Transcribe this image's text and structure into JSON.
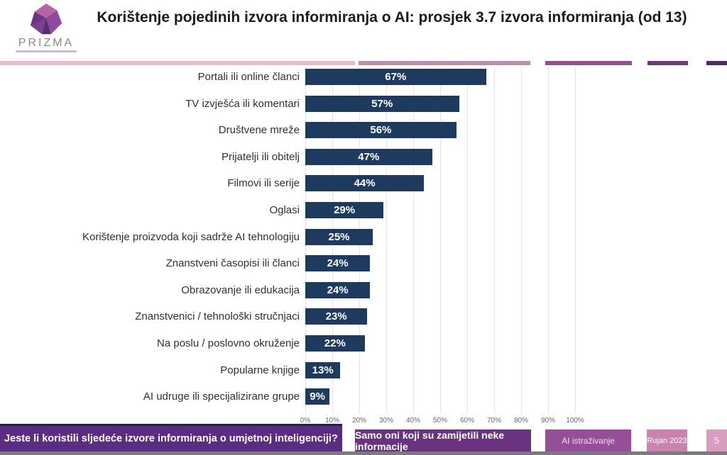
{
  "header": {
    "logo_text": "PRIZMA",
    "title": "Korištenje pojedinih izvora informiranja o AI: prosjek 3.7 izvora informiranja (od 13)"
  },
  "chart_data": {
    "type": "bar",
    "orientation": "horizontal",
    "title": "Korištenje pojedinih izvora informiranja o AI",
    "categories": [
      "Portali ili online članci",
      "TV izvješća ili komentari",
      "Društvene mreže",
      "Prijatelji ili obitelj",
      "Filmovi ili serije",
      "Oglasi",
      "Korištenje proizvoda koji sadrže AI tehnologiju",
      "Znanstveni časopisi ili članci",
      "Obrazovanje ili edukacija",
      "Znanstvenici / tehnološki stručnjaci",
      "Na poslu / poslovno okruženje",
      "Popularne knjige",
      "AI udruge ili specijalizirane grupe"
    ],
    "values": [
      67,
      57,
      56,
      47,
      44,
      29,
      25,
      24,
      24,
      23,
      22,
      13,
      9
    ],
    "value_labels": [
      "67%",
      "57%",
      "56%",
      "47%",
      "44%",
      "29%",
      "25%",
      "24%",
      "24%",
      "23%",
      "22%",
      "13%",
      "9%"
    ],
    "x_ticks": [
      "0%",
      "10%",
      "20%",
      "30%",
      "40%",
      "50%",
      "60%",
      "70%",
      "80%",
      "90%",
      "100%"
    ],
    "xlim": [
      0,
      100
    ],
    "grid": true,
    "legend": "none",
    "bar_color": "#1e3a5f",
    "value_label_color": "#ffffff"
  },
  "footer": {
    "question": "Jeste li koristili sljedeće izvore informiranja o umjetnoj inteligenciji?",
    "note": "Samo oni koji su zamijetili neke informacije",
    "project": "AI istraživanje",
    "date": "Rujan 2023",
    "page": "5"
  },
  "colors": {
    "bar": "#1e3a5f",
    "banner_question_bg": "#5b2d82",
    "banner_note_bg": "#6a3380",
    "banner_project_bg": "#954f97",
    "banner_date_bg": "#ca82ae",
    "banner_page_bg": "#d79ec0",
    "rule_segments": [
      "#e7bcce",
      "#c08ca9",
      "#8f5190",
      "#6d3a7c",
      "#4f2a62"
    ]
  }
}
